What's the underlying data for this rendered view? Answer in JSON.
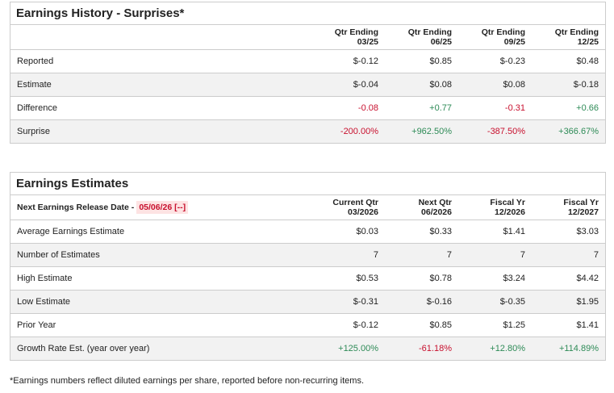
{
  "history": {
    "title": "Earnings History - Surprises*",
    "columns": [
      [
        "Qtr Ending",
        "03/25"
      ],
      [
        "Qtr Ending",
        "06/25"
      ],
      [
        "Qtr Ending",
        "09/25"
      ],
      [
        "Qtr Ending",
        "12/25"
      ]
    ],
    "rows": [
      {
        "label": "Reported",
        "values": [
          "$-0.12",
          "$0.85",
          "$-0.23",
          "$0.48"
        ]
      },
      {
        "label": "Estimate",
        "values": [
          "$-0.04",
          "$0.08",
          "$0.08",
          "$-0.18"
        ]
      },
      {
        "label": "Difference",
        "values": [
          "-0.08",
          "+0.77",
          "-0.31",
          "+0.66"
        ]
      },
      {
        "label": "Surprise",
        "values": [
          "-200.00%",
          "+962.50%",
          "-387.50%",
          "+366.67%"
        ]
      }
    ]
  },
  "estimates": {
    "title": "Earnings Estimates",
    "release_label": "Next Earnings Release Date -",
    "release_date": "05/06/26 [--]",
    "columns": [
      [
        "Current Qtr",
        "03/2026"
      ],
      [
        "Next Qtr",
        "06/2026"
      ],
      [
        "Fiscal Yr",
        "12/2026"
      ],
      [
        "Fiscal Yr",
        "12/2027"
      ]
    ],
    "rows": [
      {
        "label": "Average Earnings Estimate",
        "values": [
          "$0.03",
          "$0.33",
          "$1.41",
          "$3.03"
        ]
      },
      {
        "label": "Number of Estimates",
        "values": [
          "7",
          "7",
          "7",
          "7"
        ]
      },
      {
        "label": "High Estimate",
        "values": [
          "$0.53",
          "$0.78",
          "$3.24",
          "$4.42"
        ]
      },
      {
        "label": "Low Estimate",
        "values": [
          "$-0.31",
          "$-0.16",
          "$-0.35",
          "$1.95"
        ]
      },
      {
        "label": "Prior Year",
        "values": [
          "$-0.12",
          "$0.85",
          "$1.25",
          "$1.41"
        ]
      },
      {
        "label": "Growth Rate Est. (year over year)",
        "values": [
          "+125.00%",
          "-61.18%",
          "+12.80%",
          "+114.89%"
        ]
      }
    ]
  },
  "footnote": "*Earnings numbers reflect diluted earnings per share, reported before non-recurring items.",
  "colors": {
    "positive": "#2e8b57",
    "negative": "#c8102e"
  }
}
